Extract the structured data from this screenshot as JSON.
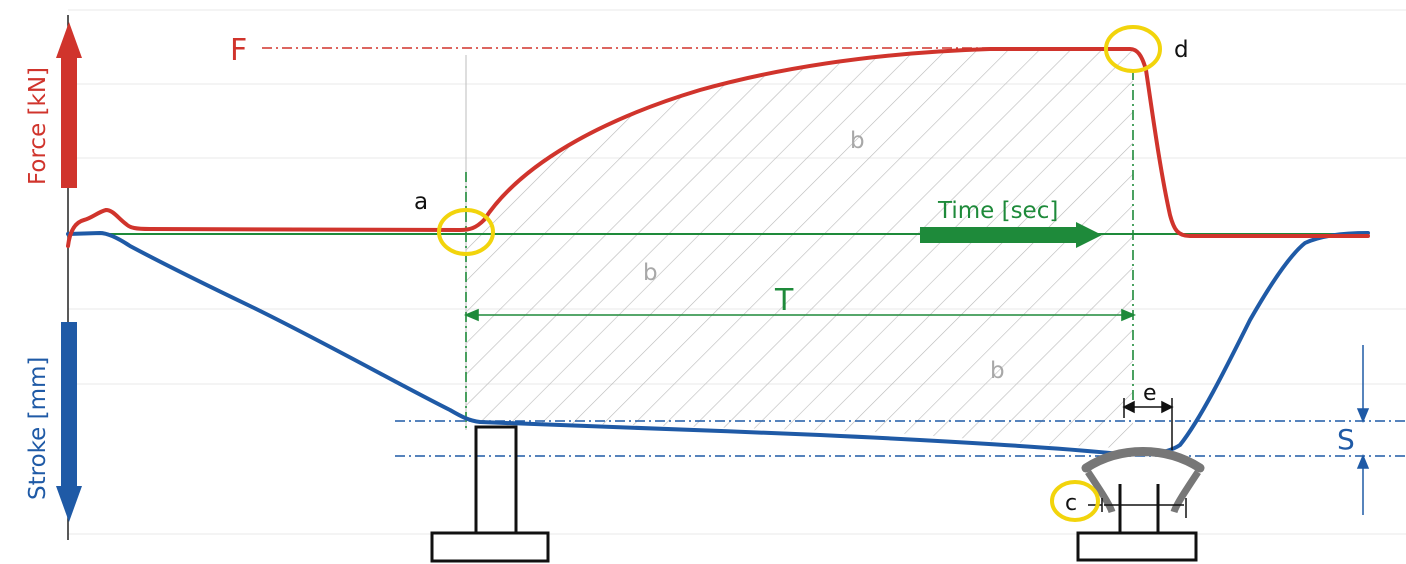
{
  "labels": {
    "force_axis": "Force [kN]",
    "stroke_axis": "Stroke [mm]",
    "time_axis": "Time [sec]",
    "F": "F",
    "T": "T",
    "S": "S",
    "a": "a",
    "b": "b",
    "c": "c",
    "d": "d",
    "e": "e"
  },
  "colors": {
    "force": "#d0342c",
    "stroke": "#1f5aa6",
    "time": "#1e8a3a",
    "marker": "#f2d40c",
    "hatch": "#b9b9b9",
    "grid": "#e8e8e8",
    "annotation": "#222222"
  },
  "icons": {
    "force_arrow": "red-up-arrow",
    "stroke_arrow": "blue-down-arrow",
    "time_arrow": "green-right-arrow",
    "punch": "rectangular-punch-tool",
    "die": "curved-die-with-workpiece"
  }
}
